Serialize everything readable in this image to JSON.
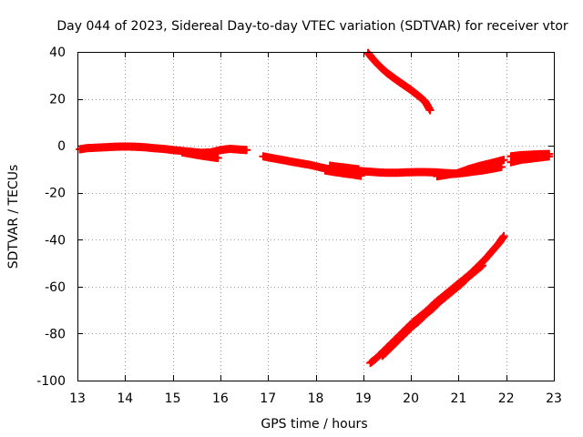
{
  "chart_data": {
    "type": "scatter",
    "title": "Day 044 of 2023, Sidereal Day-to-day VTEC variation (SDTVAR) for receiver vtor",
    "xlabel": "GPS time / hours",
    "ylabel": "SDTVAR / TECUs",
    "xlim": [
      13,
      23
    ],
    "ylim": [
      -100,
      40
    ],
    "xticks": [
      13,
      14,
      15,
      16,
      17,
      18,
      19,
      20,
      21,
      22,
      23
    ],
    "yticks": [
      40,
      20,
      0,
      -20,
      -40,
      -60,
      -80,
      -100
    ],
    "grid": true,
    "legend": "none",
    "marker": "plus",
    "color": "#ff0000",
    "series": [
      {
        "x": [
          13.05,
          13.2,
          13.4,
          13.6,
          13.8,
          14.0,
          14.2,
          14.4,
          14.6,
          14.8,
          15.0,
          15.2,
          15.4,
          15.6,
          15.8,
          16.0,
          16.2,
          16.4,
          16.55
        ],
        "y": [
          -1.5,
          -1.0,
          -0.8,
          -0.6,
          -0.4,
          -0.3,
          -0.4,
          -0.6,
          -1.0,
          -1.3,
          -1.8,
          -2.2,
          -2.6,
          -3.0,
          -2.8,
          -1.8,
          -1.3,
          -1.6,
          -1.8
        ]
      },
      {
        "x": [
          15.2,
          15.4,
          15.6,
          15.8,
          15.95
        ],
        "y": [
          -2.8,
          -3.5,
          -4.2,
          -4.8,
          -5.2
        ]
      },
      {
        "x": [
          16.9,
          17.1,
          17.3,
          17.5,
          17.7,
          17.9,
          18.1,
          18.3,
          18.5,
          18.7,
          18.9,
          19.1,
          19.3,
          19.5,
          19.7,
          19.9,
          20.1,
          20.3,
          20.5,
          20.7,
          20.9,
          21.1,
          21.3,
          21.5,
          21.7,
          21.9
        ],
        "y": [
          -4.5,
          -5.3,
          -6.0,
          -6.8,
          -7.5,
          -8.2,
          -9.2,
          -10.0,
          -10.5,
          -10.6,
          -10.7,
          -11.0,
          -11.3,
          -11.5,
          -11.5,
          -11.3,
          -11.2,
          -11.2,
          -11.3,
          -11.6,
          -11.8,
          -11.6,
          -11.0,
          -10.5,
          -9.8,
          -9.0
        ]
      },
      {
        "x": [
          18.3,
          18.5,
          18.7,
          18.9
        ],
        "y": [
          -8.5,
          -9.0,
          -9.5,
          -10.0
        ]
      },
      {
        "x": [
          18.2,
          18.4,
          18.6,
          18.8,
          18.95
        ],
        "y": [
          -10.5,
          -11.2,
          -11.8,
          -12.3,
          -12.8
        ]
      },
      {
        "x": [
          20.55,
          20.7,
          20.85,
          21.0
        ],
        "y": [
          -13.0,
          -12.5,
          -12.0,
          -11.8
        ]
      },
      {
        "x": [
          21.0,
          21.2,
          21.4,
          21.6,
          21.8,
          21.95
        ],
        "y": [
          -11.5,
          -10.0,
          -8.8,
          -7.8,
          -6.8,
          -6.0
        ]
      },
      {
        "x": [
          22.1,
          22.3,
          22.5,
          22.7,
          22.9
        ],
        "y": [
          -7.0,
          -6.0,
          -5.5,
          -5.0,
          -4.5
        ]
      },
      {
        "x": [
          22.1,
          22.3,
          22.5,
          22.7,
          22.9
        ],
        "y": [
          -4.5,
          -4.0,
          -3.8,
          -3.6,
          -3.5
        ]
      },
      {
        "x": [
          19.1,
          19.2,
          19.3,
          19.4,
          19.5,
          19.6,
          19.7,
          19.8,
          19.9,
          20.0,
          20.1,
          20.2,
          20.3,
          20.4
        ],
        "y": [
          39.5,
          37.0,
          34.8,
          32.8,
          31.0,
          29.5,
          28.0,
          26.6,
          25.2,
          23.8,
          22.2,
          20.6,
          18.8,
          15.2
        ]
      },
      {
        "x": [
          19.15,
          19.3,
          19.45,
          19.6,
          19.75,
          19.9,
          20.05,
          20.2,
          20.35,
          20.5,
          20.65,
          20.8,
          20.95,
          21.1,
          21.25,
          21.4,
          21.55,
          21.7,
          21.85,
          21.95
        ],
        "y": [
          -92.5,
          -90.0,
          -87.0,
          -84.0,
          -81.0,
          -78.0,
          -75.0,
          -72.5,
          -70.0,
          -67.0,
          -64.5,
          -62.0,
          -59.5,
          -57.0,
          -54.5,
          -51.5,
          -48.5,
          -45.0,
          -41.5,
          -38.5
        ]
      },
      {
        "x": [
          19.4,
          19.55,
          19.7,
          19.85,
          20.0,
          20.15,
          20.3,
          20.45,
          20.6,
          20.75,
          20.9,
          21.05,
          21.2,
          21.35,
          21.5
        ],
        "y": [
          -89.5,
          -86.5,
          -83.5,
          -80.5,
          -77.5,
          -75.0,
          -72.0,
          -69.5,
          -66.5,
          -64.0,
          -61.5,
          -59.0,
          -56.0,
          -53.5,
          -51.0
        ]
      }
    ]
  }
}
